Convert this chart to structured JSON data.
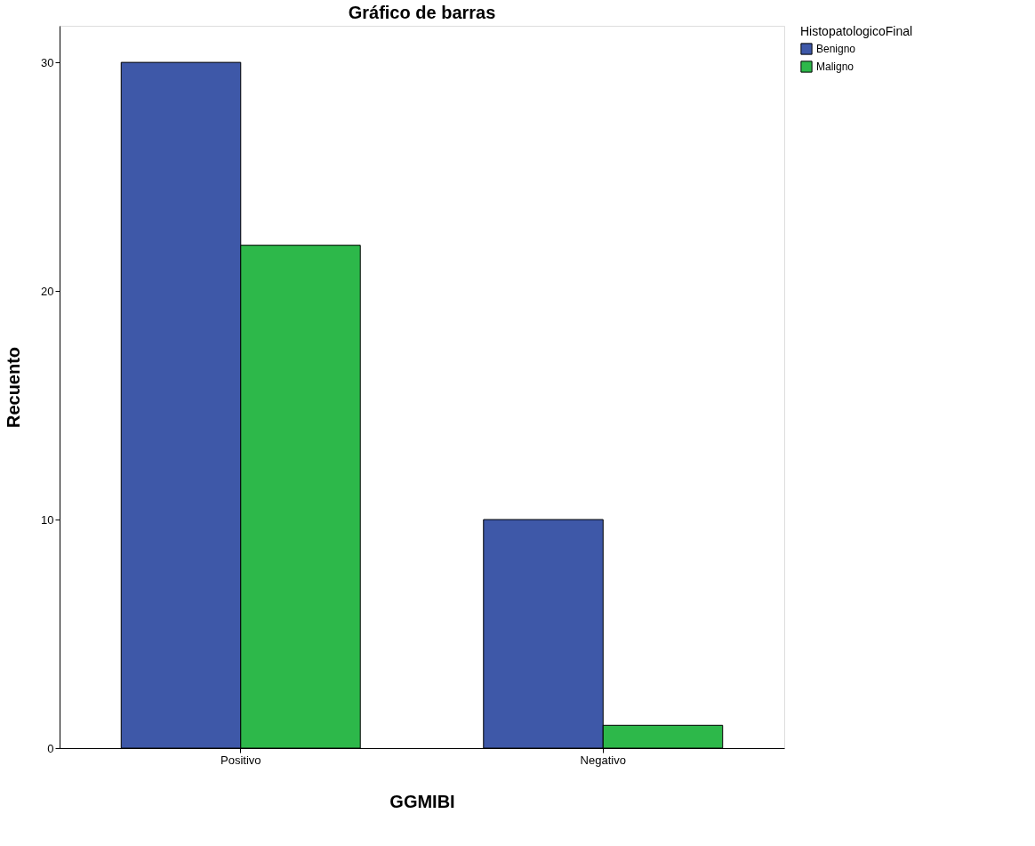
{
  "chart_data": {
    "type": "bar",
    "title": "Gráfico de barras",
    "xlabel": "GGMIBI",
    "ylabel": "Recuento",
    "legend_title": "HistopatologicoFinal",
    "categories": [
      "Positivo",
      "Negativo"
    ],
    "series": [
      {
        "name": "Benigno",
        "color": "#3e58a8",
        "values": [
          30,
          10
        ]
      },
      {
        "name": "Maligno",
        "color": "#2db84a",
        "values": [
          22,
          1
        ]
      }
    ],
    "ylim": [
      0,
      31.6
    ],
    "yticks": [
      0,
      10,
      20,
      30
    ],
    "grid": false,
    "legend": "top right"
  }
}
